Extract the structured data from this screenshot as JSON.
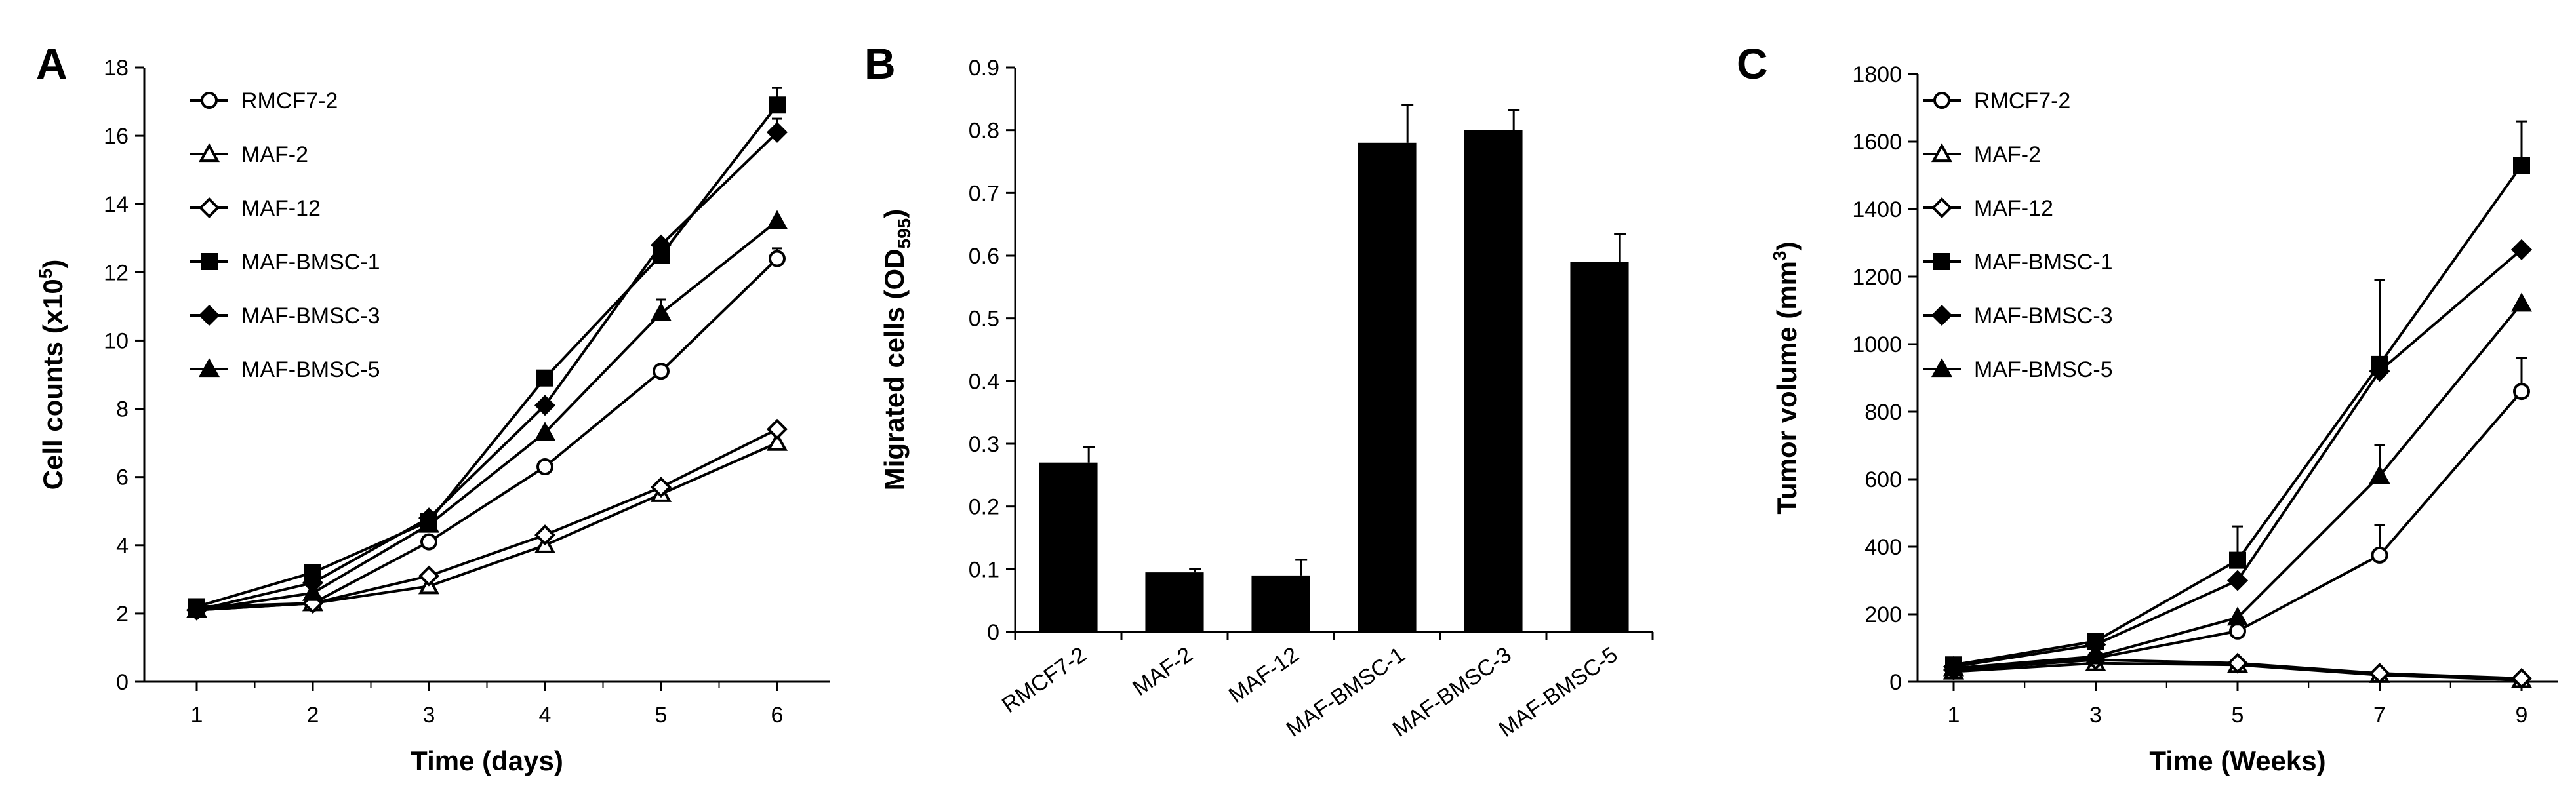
{
  "chart_data": [
    {
      "type": "line",
      "panel_label": "A",
      "xlabel": "Time (days)",
      "ylabel": "Cell counts (x10",
      "ylabel_sup": "5",
      "ylabel_tail": ")",
      "x": [
        1,
        2,
        3,
        4,
        5,
        6
      ],
      "x_ticks": [
        "1",
        "2",
        "3",
        "4",
        "5",
        "6"
      ],
      "ylim": [
        0,
        18
      ],
      "y_ticks": [
        0,
        2,
        4,
        6,
        8,
        10,
        12,
        14,
        16,
        18
      ],
      "grid": false,
      "legend_position": "top-left",
      "series": [
        {
          "name": "RMCF7-2",
          "marker": "circle-open",
          "values": [
            2.2,
            2.3,
            4.1,
            6.3,
            9.1,
            12.4
          ],
          "errors": [
            0,
            0,
            0,
            0,
            0,
            0.3
          ]
        },
        {
          "name": "MAF-2",
          "marker": "triangle-open",
          "values": [
            2.1,
            2.3,
            2.8,
            4.0,
            5.5,
            7.0
          ],
          "errors": [
            0,
            0,
            0,
            0,
            0,
            0
          ]
        },
        {
          "name": "MAF-12",
          "marker": "diamond-open",
          "values": [
            2.1,
            2.3,
            3.1,
            4.3,
            5.7,
            7.4
          ],
          "errors": [
            0,
            0,
            0,
            0,
            0,
            0
          ]
        },
        {
          "name": "MAF-BMSC-1",
          "marker": "square-filled",
          "values": [
            2.2,
            3.2,
            4.7,
            8.9,
            12.5,
            16.9
          ],
          "errors": [
            0,
            0,
            0,
            0,
            0.3,
            0.5
          ]
        },
        {
          "name": "MAF-BMSC-3",
          "marker": "diamond-filled",
          "values": [
            2.1,
            2.9,
            4.8,
            8.1,
            12.8,
            16.1
          ],
          "errors": [
            0,
            0,
            0,
            0,
            0,
            0.4
          ]
        },
        {
          "name": "MAF-BMSC-5",
          "marker": "triangle-filled",
          "values": [
            2.1,
            2.6,
            4.6,
            7.3,
            10.8,
            13.5
          ],
          "errors": [
            0,
            0,
            0,
            0,
            0.4,
            0
          ]
        }
      ]
    },
    {
      "type": "bar",
      "panel_label": "B",
      "ylabel": "Migrated cells (OD",
      "ylabel_sub": "595",
      "ylabel_tail": ")",
      "categories": [
        "RMCF7-2",
        "MAF-2",
        "MAF-12",
        "MAF-BMSC-1",
        "MAF-BMSC-3",
        "MAF-BMSC-5"
      ],
      "values": [
        0.27,
        0.095,
        0.09,
        0.78,
        0.8,
        0.59
      ],
      "errors": [
        0.025,
        0.005,
        0.025,
        0.06,
        0.032,
        0.045
      ],
      "ylim": [
        0,
        0.9
      ],
      "y_ticks": [
        "0",
        "0.1",
        "0.2",
        "0.3",
        "0.4",
        "0.5",
        "0.6",
        "0.7",
        "0.8",
        "0.9"
      ],
      "grid": false,
      "bar_color": "#000000"
    },
    {
      "type": "line",
      "panel_label": "C",
      "xlabel": "Time (Weeks)",
      "ylabel": "Tumor volume (mm",
      "ylabel_sup": "3",
      "ylabel_tail": ")",
      "x": [
        1,
        3,
        5,
        7,
        9
      ],
      "x_ticks": [
        "1",
        "3",
        "5",
        "7",
        "9"
      ],
      "ylim": [
        0,
        1800
      ],
      "y_ticks": [
        0,
        200,
        400,
        600,
        800,
        1000,
        1200,
        1400,
        1600,
        1800
      ],
      "grid": false,
      "legend_position": "top-left",
      "series": [
        {
          "name": "RMCF7-2",
          "marker": "circle-open",
          "values": [
            40,
            70,
            150,
            375,
            860
          ],
          "errors": [
            0,
            0,
            0,
            90,
            100
          ]
        },
        {
          "name": "MAF-2",
          "marker": "triangle-open",
          "values": [
            30,
            55,
            50,
            20,
            5
          ],
          "errors": [
            0,
            0,
            0,
            0,
            0
          ]
        },
        {
          "name": "MAF-12",
          "marker": "diamond-open",
          "values": [
            35,
            65,
            55,
            25,
            10
          ],
          "errors": [
            0,
            0,
            0,
            0,
            0
          ]
        },
        {
          "name": "MAF-BMSC-1",
          "marker": "square-filled",
          "values": [
            50,
            120,
            360,
            940,
            1530
          ],
          "errors": [
            0,
            0,
            100,
            250,
            130
          ]
        },
        {
          "name": "MAF-BMSC-3",
          "marker": "diamond-filled",
          "values": [
            45,
            110,
            300,
            920,
            1280
          ],
          "errors": [
            0,
            0,
            0,
            0,
            0
          ]
        },
        {
          "name": "MAF-BMSC-5",
          "marker": "triangle-filled",
          "values": [
            40,
            75,
            190,
            610,
            1120
          ],
          "errors": [
            0,
            0,
            0,
            90,
            0
          ]
        }
      ]
    }
  ]
}
